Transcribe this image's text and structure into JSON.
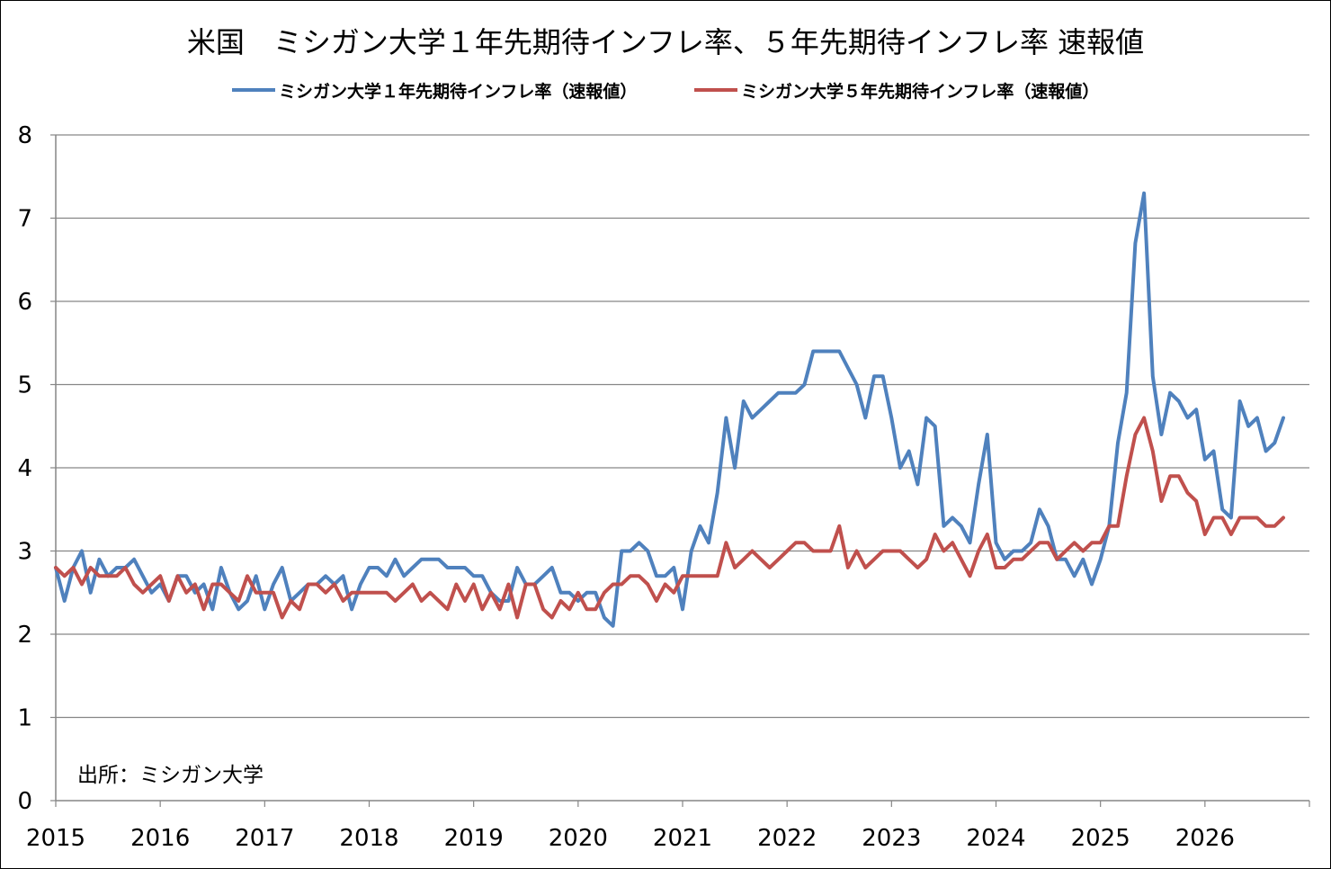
{
  "chart_data": {
    "type": "line",
    "title": "米国　ミシガン大学１年先期待インフレ率、５年先期待インフレ率 速報値",
    "source_note": "出所：ミシガン大学",
    "xlabel": "",
    "ylabel": "",
    "ylim": [
      0,
      8
    ],
    "yticks": [
      "0",
      "1",
      "2",
      "3",
      "4",
      "5",
      "6",
      "7",
      "8"
    ],
    "xlim": [
      2015,
      2027
    ],
    "xticks": [
      "2015",
      "2016",
      "2017",
      "2018",
      "2019",
      "2020",
      "2021",
      "2022",
      "2023",
      "2024",
      "2025",
      "2026"
    ],
    "grid": "horizontal",
    "legend_position": "top",
    "x_start_year": 2015,
    "x_step": "month",
    "series": [
      {
        "name": "ミシガン大学１年先期待インフレ率（速報値）",
        "color": "#4F81BD",
        "values": [
          2.8,
          2.4,
          2.8,
          3.0,
          2.5,
          2.9,
          2.7,
          2.8,
          2.8,
          2.9,
          2.7,
          2.5,
          2.6,
          2.4,
          2.7,
          2.7,
          2.5,
          2.6,
          2.3,
          2.8,
          2.5,
          2.3,
          2.4,
          2.7,
          2.3,
          2.6,
          2.8,
          2.4,
          2.5,
          2.6,
          2.6,
          2.7,
          2.6,
          2.7,
          2.3,
          2.6,
          2.8,
          2.8,
          2.7,
          2.9,
          2.7,
          2.8,
          2.9,
          2.9,
          2.9,
          2.8,
          2.8,
          2.8,
          2.7,
          2.7,
          2.5,
          2.4,
          2.4,
          2.8,
          2.6,
          2.6,
          2.7,
          2.8,
          2.5,
          2.5,
          2.4,
          2.5,
          2.5,
          2.2,
          2.1,
          3.0,
          3.0,
          3.1,
          3.0,
          2.7,
          2.7,
          2.8,
          2.3,
          3.0,
          3.3,
          3.1,
          3.7,
          4.6,
          4.0,
          4.8,
          4.6,
          4.7,
          4.8,
          4.9,
          4.9,
          4.9,
          5.0,
          5.4,
          5.4,
          5.4,
          5.4,
          5.2,
          5.0,
          4.6,
          5.1,
          5.1,
          4.6,
          4.0,
          4.2,
          3.8,
          4.6,
          4.5,
          3.3,
          3.4,
          3.3,
          3.1,
          3.8,
          4.4,
          3.1,
          2.9,
          3.0,
          3.0,
          3.1,
          3.5,
          3.3,
          2.9,
          2.9,
          2.7,
          2.9,
          2.6,
          2.9,
          3.3,
          4.3,
          4.9,
          6.7,
          7.3,
          5.1,
          4.4,
          4.9,
          4.8,
          4.6,
          4.7,
          4.1,
          4.2,
          3.5,
          3.4,
          4.8,
          4.5,
          4.6,
          4.2,
          4.3,
          4.6
        ]
      },
      {
        "name": "ミシガン大学５年先期待インフレ率（速報値）",
        "color": "#C0504D",
        "values": [
          2.8,
          2.7,
          2.8,
          2.6,
          2.8,
          2.7,
          2.7,
          2.7,
          2.8,
          2.6,
          2.5,
          2.6,
          2.7,
          2.4,
          2.7,
          2.5,
          2.6,
          2.3,
          2.6,
          2.6,
          2.5,
          2.4,
          2.7,
          2.5,
          2.5,
          2.5,
          2.2,
          2.4,
          2.3,
          2.6,
          2.6,
          2.5,
          2.6,
          2.4,
          2.5,
          2.5,
          2.5,
          2.5,
          2.5,
          2.4,
          2.5,
          2.6,
          2.4,
          2.5,
          2.4,
          2.3,
          2.6,
          2.4,
          2.6,
          2.3,
          2.5,
          2.3,
          2.6,
          2.2,
          2.6,
          2.6,
          2.3,
          2.2,
          2.4,
          2.3,
          2.5,
          2.3,
          2.3,
          2.5,
          2.6,
          2.6,
          2.7,
          2.7,
          2.6,
          2.4,
          2.6,
          2.5,
          2.7,
          2.7,
          2.7,
          2.7,
          2.7,
          3.1,
          2.8,
          2.9,
          3.0,
          2.9,
          2.8,
          2.9,
          3.0,
          3.1,
          3.1,
          3.0,
          3.0,
          3.0,
          3.3,
          2.8,
          3.0,
          2.8,
          2.9,
          3.0,
          3.0,
          3.0,
          2.9,
          2.8,
          2.9,
          3.2,
          3.0,
          3.1,
          2.9,
          2.7,
          3.0,
          3.2,
          2.8,
          2.8,
          2.9,
          2.9,
          3.0,
          3.1,
          3.1,
          2.9,
          3.0,
          3.1,
          3.0,
          3.1,
          3.1,
          3.3,
          3.3,
          3.9,
          4.4,
          4.6,
          4.2,
          3.6,
          3.9,
          3.9,
          3.7,
          3.6,
          3.2,
          3.4,
          3.4,
          3.2,
          3.4,
          3.4,
          3.4,
          3.3,
          3.3,
          3.4
        ]
      }
    ]
  }
}
